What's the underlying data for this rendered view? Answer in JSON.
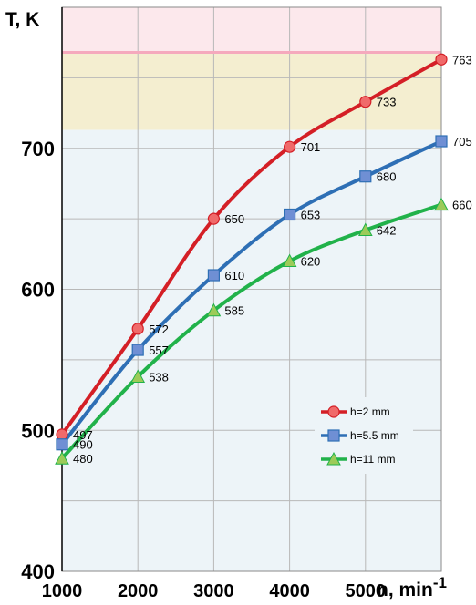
{
  "chart_data": {
    "type": "line",
    "ylabel": "T, K",
    "xlabel": "n, min",
    "xlabel_sup": "-1",
    "xlim": [
      1000,
      6000
    ],
    "ylim": [
      400,
      800
    ],
    "x_ticks": [
      "1000",
      "2000",
      "3000",
      "4000",
      "5000"
    ],
    "y_ticks": [
      "400",
      "500",
      "600",
      "700"
    ],
    "bands": [
      {
        "from": 713,
        "to": 768,
        "color": "#f4eed0"
      },
      {
        "from": 768,
        "to": 800,
        "color": "#fce8ec"
      },
      {
        "from": 400,
        "to": 713,
        "color": "#edf4f8"
      }
    ],
    "threshold_line": {
      "y": 768,
      "color": "#f5a9bd"
    },
    "grid": true,
    "legend_position": "center-right",
    "series": [
      {
        "name": "h=2 mm",
        "color": "#d41f26",
        "marker": "circle",
        "marker_fill": "#f06a6a",
        "x": [
          1000,
          2000,
          3000,
          4000,
          5000,
          6000
        ],
        "values": [
          497,
          572,
          650,
          701,
          733,
          763
        ],
        "labels": [
          "497",
          "572",
          "650",
          "701",
          "733",
          "763"
        ]
      },
      {
        "name": "h=5.5 mm",
        "color": "#2e6fb5",
        "marker": "square",
        "marker_fill": "#6f8fd4",
        "x": [
          1000,
          2000,
          3000,
          4000,
          5000,
          6000
        ],
        "values": [
          490,
          557,
          610,
          653,
          680,
          705
        ],
        "labels": [
          "490",
          "557",
          "610",
          "653",
          "680",
          "705"
        ]
      },
      {
        "name": "h=11 mm",
        "color": "#21b24a",
        "marker": "triangle",
        "marker_fill": "#9ccb59",
        "x": [
          1000,
          2000,
          3000,
          4000,
          5000,
          6000
        ],
        "values": [
          480,
          538,
          585,
          620,
          642,
          660
        ],
        "labels": [
          "480",
          "538",
          "585",
          "620",
          "642",
          "660"
        ]
      }
    ]
  }
}
